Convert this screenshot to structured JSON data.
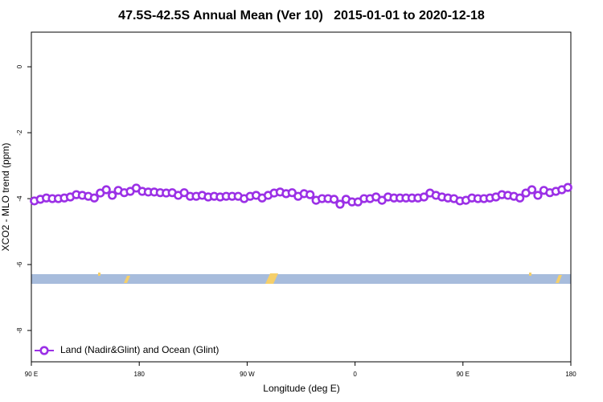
{
  "chart_data": {
    "type": "line",
    "title": "47.5S-42.5S Annual Mean (Ver 10)   2015-01-01 to 2020-12-18",
    "xlabel": "Longitude (deg E)",
    "ylabel": "XCO2 - MLO trend (ppm)",
    "xlim": [
      90,
      540
    ],
    "ylim": [
      -8.95,
      1.05
    ],
    "xticks": [
      {
        "value": 90,
        "label": "90 E"
      },
      {
        "value": 180,
        "label": "180"
      },
      {
        "value": 270,
        "label": "90 W"
      },
      {
        "value": 360,
        "label": "0"
      },
      {
        "value": 450,
        "label": "90 E"
      },
      {
        "value": 540,
        "label": "180"
      }
    ],
    "yticks": [
      0,
      -2,
      -4,
      -6,
      -8
    ],
    "grid": false,
    "legend": "lower left",
    "x": [
      92.5,
      97.5,
      102.5,
      107.5,
      112.5,
      117.5,
      122.5,
      127.5,
      132.5,
      137.5,
      142.5,
      147.5,
      152.5,
      157.5,
      162.5,
      167.5,
      172.5,
      177.5,
      182.5,
      187.5,
      192.5,
      197.5,
      202.5,
      207.5,
      212.5,
      217.5,
      222.5,
      227.5,
      232.5,
      237.5,
      242.5,
      247.5,
      252.5,
      257.5,
      262.5,
      267.5,
      272.5,
      277.5,
      282.5,
      287.5,
      292.5,
      297.5,
      302.5,
      307.5,
      312.5,
      317.5,
      322.5,
      327.5,
      332.5,
      337.5,
      342.5,
      347.5,
      352.5,
      357.5,
      362.5,
      367.5,
      372.5,
      377.5,
      382.5,
      387.5,
      392.5,
      397.5,
      402.5,
      407.5,
      412.5,
      417.5,
      422.5,
      427.5,
      432.5,
      437.5,
      442.5,
      447.5,
      452.5,
      457.5,
      462.5,
      467.5,
      472.5,
      477.5,
      482.5,
      487.5,
      492.5,
      497.5,
      502.5,
      507.5,
      512.5,
      517.5,
      522.5,
      527.5,
      532.5,
      537.5
    ],
    "series": [
      {
        "name": "Land (Nadir&Glint) and Ocean (Glint)",
        "color": "#9b30e6",
        "values": [
          -4.07,
          -4.02,
          -3.98,
          -4.0,
          -4.0,
          -3.98,
          -3.95,
          -3.88,
          -3.9,
          -3.93,
          -3.98,
          -3.83,
          -3.73,
          -3.9,
          -3.75,
          -3.82,
          -3.78,
          -3.68,
          -3.78,
          -3.8,
          -3.8,
          -3.82,
          -3.83,
          -3.82,
          -3.9,
          -3.82,
          -3.93,
          -3.93,
          -3.9,
          -3.95,
          -3.93,
          -3.95,
          -3.93,
          -3.93,
          -3.93,
          -4.0,
          -3.93,
          -3.9,
          -3.98,
          -3.9,
          -3.83,
          -3.8,
          -3.85,
          -3.82,
          -3.93,
          -3.85,
          -3.88,
          -4.05,
          -4.0,
          -4.0,
          -4.02,
          -4.17,
          -4.02,
          -4.1,
          -4.1,
          -4.0,
          -4.0,
          -3.95,
          -4.05,
          -3.95,
          -3.98,
          -3.98,
          -3.98,
          -3.98,
          -3.98,
          -3.95,
          -3.83,
          -3.9,
          -3.95,
          -3.98,
          -4.0,
          -4.07,
          -4.05,
          -3.98,
          -4.0,
          -4.0,
          -3.98,
          -3.95,
          -3.88,
          -3.9,
          -3.93,
          -3.98,
          -3.83,
          -3.73,
          -3.9,
          -3.75,
          -3.82,
          -3.78,
          -3.73,
          -3.66
        ]
      }
    ]
  }
}
